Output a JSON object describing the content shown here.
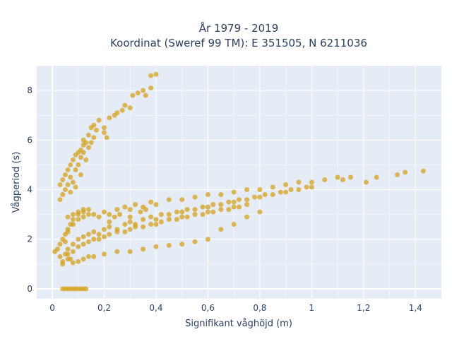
{
  "chart_data": {
    "type": "scatter",
    "title_line1": "År 1979 - 2019",
    "title_line2": "Koordinat (Sweref 99 TM): E 351505, N 6211036",
    "xlabel": "Signifikant våghöjd (m)",
    "ylabel": "Vågperiod (s)",
    "xlim": [
      -0.06,
      1.5
    ],
    "ylim": [
      -0.4,
      9.0
    ],
    "x_ticks": [
      0,
      0.2,
      0.4,
      0.6,
      0.8,
      1,
      1.2,
      1.4
    ],
    "x_tick_labels": [
      "0",
      "0,2",
      "0,4",
      "0,6",
      "0,8",
      "1",
      "1,2",
      "1,4"
    ],
    "y_ticks": [
      0,
      2,
      4,
      6,
      8
    ],
    "y_tick_labels": [
      "0",
      "2",
      "4",
      "6",
      "8"
    ],
    "grid": true,
    "marker_color": "#d4a11e",
    "background_color": "#e5ecf6",
    "series": [
      {
        "points": [
          [
            0.04,
            0
          ],
          [
            0.05,
            0
          ],
          [
            0.06,
            0
          ],
          [
            0.07,
            0
          ],
          [
            0.08,
            0
          ],
          [
            0.09,
            0
          ],
          [
            0.1,
            0
          ],
          [
            0.11,
            0
          ],
          [
            0.12,
            0
          ],
          [
            0.13,
            0
          ],
          [
            0.01,
            1.5
          ],
          [
            0.02,
            1.6
          ],
          [
            0.03,
            1.3
          ],
          [
            0.04,
            1.0
          ],
          [
            0.05,
            1.9
          ],
          [
            0.06,
            2.3
          ],
          [
            0.07,
            2.6
          ],
          [
            0.08,
            2.8
          ],
          [
            0.1,
            3.0
          ],
          [
            0.12,
            3.1
          ],
          [
            0.14,
            3.2
          ],
          [
            0.16,
            3.0
          ],
          [
            0.18,
            2.9
          ],
          [
            0.2,
            3.1
          ],
          [
            0.22,
            3.0
          ],
          [
            0.25,
            3.2
          ],
          [
            0.28,
            3.3
          ],
          [
            0.3,
            3.2
          ],
          [
            0.32,
            3.4
          ],
          [
            0.35,
            3.3
          ],
          [
            0.38,
            3.5
          ],
          [
            0.4,
            3.4
          ],
          [
            0.45,
            3.6
          ],
          [
            0.5,
            3.6
          ],
          [
            0.55,
            3.7
          ],
          [
            0.6,
            3.8
          ],
          [
            0.65,
            3.8
          ],
          [
            0.7,
            3.9
          ],
          [
            0.75,
            4.0
          ],
          [
            0.8,
            4.0
          ],
          [
            0.85,
            4.1
          ],
          [
            0.9,
            4.2
          ],
          [
            0.95,
            4.3
          ],
          [
            1.0,
            4.3
          ],
          [
            1.05,
            4.4
          ],
          [
            1.1,
            4.5
          ],
          [
            1.12,
            4.4
          ],
          [
            1.15,
            4.5
          ],
          [
            1.21,
            4.3
          ],
          [
            1.25,
            4.5
          ],
          [
            1.33,
            4.6
          ],
          [
            1.36,
            4.7
          ],
          [
            1.43,
            4.75
          ],
          [
            0.04,
            1.1
          ],
          [
            0.06,
            1.2
          ],
          [
            0.08,
            1.05
          ],
          [
            0.1,
            1.1
          ],
          [
            0.12,
            1.2
          ],
          [
            0.14,
            1.3
          ],
          [
            0.16,
            1.3
          ],
          [
            0.2,
            1.4
          ],
          [
            0.25,
            1.5
          ],
          [
            0.3,
            1.5
          ],
          [
            0.35,
            1.6
          ],
          [
            0.4,
            1.7
          ],
          [
            0.45,
            1.75
          ],
          [
            0.5,
            1.8
          ],
          [
            0.55,
            1.9
          ],
          [
            0.6,
            2.0
          ],
          [
            0.65,
            2.4
          ],
          [
            0.7,
            2.6
          ],
          [
            0.75,
            2.9
          ],
          [
            0.8,
            3.1
          ],
          [
            0.06,
            1.6
          ],
          [
            0.08,
            1.8
          ],
          [
            0.1,
            2.0
          ],
          [
            0.12,
            2.1
          ],
          [
            0.14,
            2.2
          ],
          [
            0.16,
            2.3
          ],
          [
            0.18,
            2.2
          ],
          [
            0.2,
            2.4
          ],
          [
            0.22,
            2.5
          ],
          [
            0.25,
            2.4
          ],
          [
            0.28,
            2.6
          ],
          [
            0.3,
            2.7
          ],
          [
            0.32,
            2.6
          ],
          [
            0.35,
            2.8
          ],
          [
            0.38,
            2.9
          ],
          [
            0.4,
            2.8
          ],
          [
            0.42,
            3.0
          ],
          [
            0.45,
            3.0
          ],
          [
            0.48,
            3.1
          ],
          [
            0.5,
            3.1
          ],
          [
            0.52,
            3.2
          ],
          [
            0.55,
            3.2
          ],
          [
            0.58,
            3.3
          ],
          [
            0.6,
            3.3
          ],
          [
            0.62,
            3.4
          ],
          [
            0.65,
            3.4
          ],
          [
            0.68,
            3.5
          ],
          [
            0.7,
            3.5
          ],
          [
            0.72,
            3.6
          ],
          [
            0.75,
            3.6
          ],
          [
            0.78,
            3.7
          ],
          [
            0.8,
            3.7
          ],
          [
            0.82,
            3.8
          ],
          [
            0.85,
            3.8
          ],
          [
            0.88,
            3.9
          ],
          [
            0.9,
            3.9
          ],
          [
            0.92,
            4.0
          ],
          [
            0.95,
            4.0
          ],
          [
            0.98,
            4.1
          ],
          [
            1.0,
            4.1
          ],
          [
            0.06,
            1.4
          ],
          [
            0.08,
            1.5
          ],
          [
            0.1,
            1.7
          ],
          [
            0.12,
            1.8
          ],
          [
            0.14,
            1.9
          ],
          [
            0.16,
            2.0
          ],
          [
            0.18,
            2.0
          ],
          [
            0.2,
            2.1
          ],
          [
            0.22,
            2.2
          ],
          [
            0.25,
            2.3
          ],
          [
            0.28,
            2.3
          ],
          [
            0.3,
            2.4
          ],
          [
            0.32,
            2.5
          ],
          [
            0.35,
            2.5
          ],
          [
            0.38,
            2.6
          ],
          [
            0.4,
            2.6
          ],
          [
            0.42,
            2.7
          ],
          [
            0.45,
            2.8
          ],
          [
            0.48,
            2.8
          ],
          [
            0.5,
            2.9
          ],
          [
            0.52,
            2.9
          ],
          [
            0.55,
            3.0
          ],
          [
            0.58,
            3.0
          ],
          [
            0.6,
            3.1
          ],
          [
            0.62,
            3.1
          ],
          [
            0.65,
            3.2
          ],
          [
            0.68,
            3.2
          ],
          [
            0.7,
            3.3
          ],
          [
            0.72,
            3.3
          ],
          [
            0.75,
            3.4
          ],
          [
            0.08,
            2.6
          ],
          [
            0.1,
            2.8
          ],
          [
            0.12,
            2.9
          ],
          [
            0.14,
            3.0
          ],
          [
            0.06,
            2.4
          ],
          [
            0.05,
            2.2
          ],
          [
            0.04,
            2.0
          ],
          [
            0.03,
            1.8
          ],
          [
            0.05,
            1.4
          ],
          [
            0.07,
            1.2
          ],
          [
            0.03,
            3.6
          ],
          [
            0.03,
            4.2
          ],
          [
            0.04,
            3.8
          ],
          [
            0.04,
            4.4
          ],
          [
            0.05,
            4.0
          ],
          [
            0.05,
            4.6
          ],
          [
            0.06,
            4.2
          ],
          [
            0.06,
            4.8
          ],
          [
            0.07,
            4.5
          ],
          [
            0.07,
            5.0
          ],
          [
            0.08,
            4.3
          ],
          [
            0.08,
            5.2
          ],
          [
            0.09,
            4.8
          ],
          [
            0.09,
            5.4
          ],
          [
            0.1,
            5.0
          ],
          [
            0.1,
            5.5
          ],
          [
            0.11,
            5.3
          ],
          [
            0.11,
            5.6
          ],
          [
            0.12,
            5.5
          ],
          [
            0.12,
            5.8
          ],
          [
            0.13,
            5.9
          ],
          [
            0.14,
            6.2
          ],
          [
            0.15,
            6.5
          ],
          [
            0.16,
            6.6
          ],
          [
            0.17,
            6.4
          ],
          [
            0.18,
            6.8
          ],
          [
            0.2,
            6.5
          ],
          [
            0.22,
            6.9
          ],
          [
            0.24,
            7.0
          ],
          [
            0.25,
            7.1
          ],
          [
            0.27,
            7.2
          ],
          [
            0.28,
            7.4
          ],
          [
            0.3,
            7.3
          ],
          [
            0.31,
            7.8
          ],
          [
            0.33,
            7.9
          ],
          [
            0.35,
            8.0
          ],
          [
            0.36,
            7.8
          ],
          [
            0.38,
            8.1
          ],
          [
            0.38,
            8.6
          ],
          [
            0.4,
            8.65
          ],
          [
            0.07,
            3.9
          ],
          [
            0.09,
            4.1
          ],
          [
            0.11,
            4.6
          ],
          [
            0.13,
            5.2
          ],
          [
            0.14,
            5.7
          ],
          [
            0.15,
            5.9
          ],
          [
            0.16,
            6.1
          ],
          [
            0.12,
            6.0
          ],
          [
            0.2,
            6.3
          ],
          [
            0.21,
            6.1
          ],
          [
            0.1,
            3.1
          ],
          [
            0.12,
            3.2
          ],
          [
            0.08,
            3.0
          ],
          [
            0.06,
            2.9
          ],
          [
            0.22,
            2.7
          ],
          [
            0.24,
            2.9
          ],
          [
            0.26,
            3.0
          ],
          [
            0.3,
            2.9
          ],
          [
            0.34,
            3.1
          ],
          [
            0.36,
            3.2
          ]
        ]
      }
    ]
  }
}
